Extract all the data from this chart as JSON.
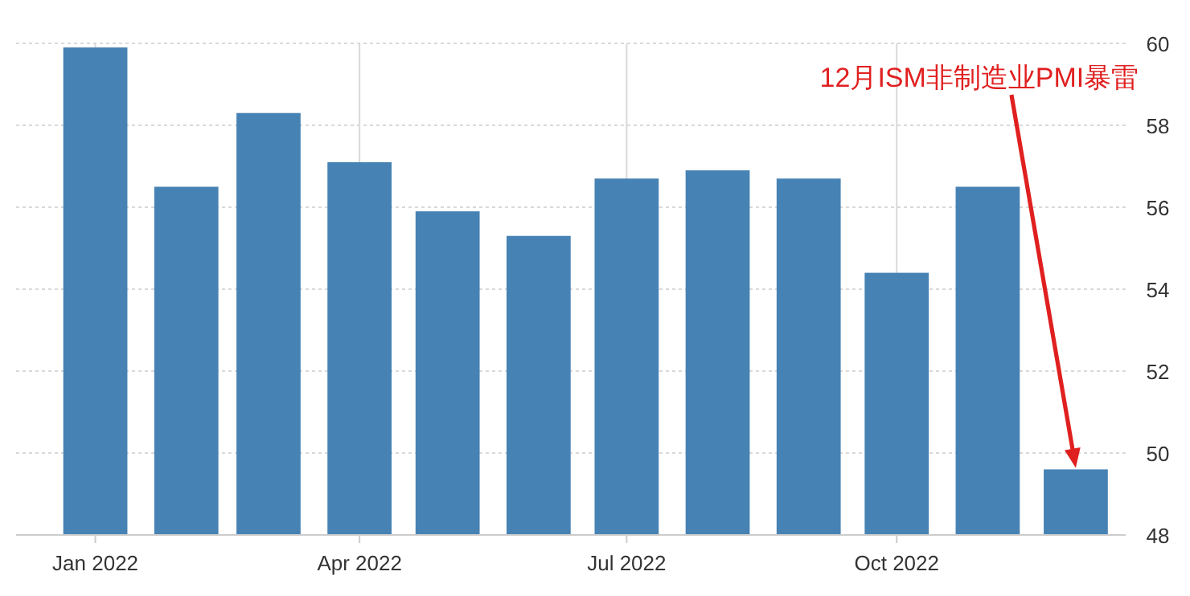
{
  "chart_data": {
    "type": "bar",
    "x": [
      "2022-01",
      "2022-02",
      "2022-03",
      "2022-04",
      "2022-05",
      "2022-06",
      "2022-07",
      "2022-08",
      "2022-09",
      "2022-10",
      "2022-11",
      "2022-12"
    ],
    "values": [
      59.9,
      56.5,
      58.3,
      57.1,
      55.9,
      55.3,
      56.7,
      56.9,
      56.7,
      54.4,
      56.5,
      49.6
    ],
    "color": "#4682b4",
    "xlim": [
      "2021-12-05",
      "2022-12-18"
    ],
    "xticks": [
      {
        "value": "2022-01",
        "label": "Jan 2022"
      },
      {
        "value": "2022-04",
        "label": "Apr 2022"
      },
      {
        "value": "2022-07",
        "label": "Jul 2022"
      },
      {
        "value": "2022-10",
        "label": "Oct 2022"
      }
    ],
    "ylim": [
      48,
      60
    ],
    "yticks": [
      48,
      50,
      52,
      54,
      56,
      58,
      60
    ],
    "grid": true,
    "annotations": [
      "12月ISM非制造业PMI暴雷"
    ]
  }
}
